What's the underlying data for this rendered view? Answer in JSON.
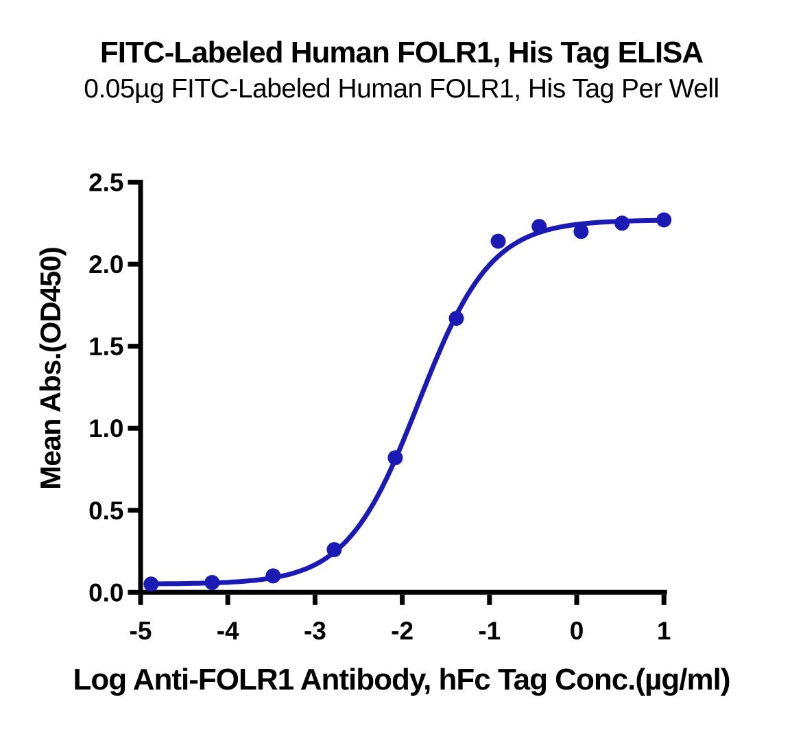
{
  "chart_data": {
    "type": "scatter",
    "title": "FITC-Labeled Human FOLR1, His Tag ELISA",
    "subtitle": "0.05µg FITC-Labeled Human FOLR1, His Tag Per Well",
    "xlabel": "Log Anti-FOLR1 Antibody, hFc Tag Conc.(µg/ml)",
    "ylabel": "Mean Abs.(OD450)",
    "xlim": [
      -5,
      1
    ],
    "ylim": [
      0,
      2.5
    ],
    "xticks": [
      "-5",
      "-4",
      "-3",
      "-2",
      "-1",
      "0",
      "1"
    ],
    "yticks": [
      "0.0",
      "0.5",
      "1.0",
      "1.5",
      "2.0",
      "2.5"
    ],
    "grid": false,
    "legend": "none",
    "axis_color": "#000000",
    "series": [
      {
        "name": "FITC-Labeled Human FOLR1, His Tag",
        "color": "#1b1bb4",
        "marker": "circle",
        "points": [
          {
            "x": -4.88,
            "y": 0.05
          },
          {
            "x": -4.18,
            "y": 0.06
          },
          {
            "x": -3.48,
            "y": 0.1
          },
          {
            "x": -2.78,
            "y": 0.26
          },
          {
            "x": -2.08,
            "y": 0.82
          },
          {
            "x": -1.38,
            "y": 1.67
          },
          {
            "x": -0.9,
            "y": 2.14
          },
          {
            "x": -0.43,
            "y": 2.23
          },
          {
            "x": 0.05,
            "y": 2.2
          },
          {
            "x": 0.52,
            "y": 2.25
          },
          {
            "x": 1.0,
            "y": 2.27
          }
        ],
        "fit_4pl": {
          "bottom": 0.05,
          "top": 2.27,
          "logEC50": -1.81,
          "hill": 1.05
        }
      }
    ]
  }
}
